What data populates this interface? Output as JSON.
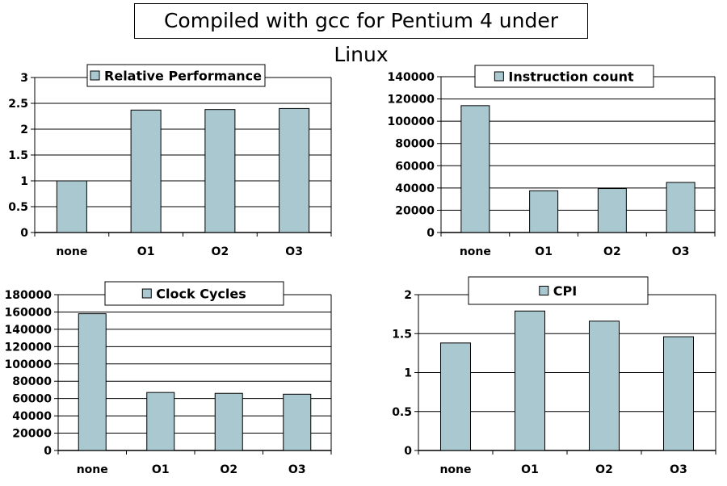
{
  "page": {
    "title": "Compiled with gcc for Pentium 4 under Linux"
  },
  "colors": {
    "bar_fill": "#a9c8cf",
    "bar_stroke": "#000000",
    "grid": "#000000"
  },
  "chart_data": [
    {
      "id": "relative-performance",
      "type": "bar",
      "legend": "Relative Performance",
      "legend_position": "top",
      "categories": [
        "none",
        "O1",
        "O2",
        "O3"
      ],
      "values": [
        1.0,
        2.37,
        2.38,
        2.4
      ],
      "ylim": [
        0,
        3
      ],
      "yticks": [
        "0",
        "0.5",
        "1",
        "1.5",
        "2",
        "2.5",
        "3"
      ],
      "grid": true
    },
    {
      "id": "instruction-count",
      "type": "bar",
      "legend": "Instruction count",
      "legend_position": "top",
      "categories": [
        "none",
        "O1",
        "O2",
        "O3"
      ],
      "values": [
        114000,
        37500,
        39500,
        45000
      ],
      "ylim": [
        0,
        140000
      ],
      "yticks": [
        "0",
        "20000",
        "40000",
        "60000",
        "80000",
        "100000",
        "120000",
        "140000"
      ],
      "grid": true
    },
    {
      "id": "clock-cycles",
      "type": "bar",
      "legend": "Clock Cycles",
      "legend_position": "top",
      "categories": [
        "none",
        "O1",
        "O2",
        "O3"
      ],
      "values": [
        158000,
        67000,
        66000,
        65000
      ],
      "ylim": [
        0,
        180000
      ],
      "yticks": [
        "0",
        "20000",
        "40000",
        "60000",
        "80000",
        "100000",
        "120000",
        "140000",
        "160000",
        "180000"
      ],
      "grid": true
    },
    {
      "id": "cpi",
      "type": "bar",
      "legend": "CPI",
      "legend_position": "top",
      "categories": [
        "none",
        "O1",
        "O2",
        "O3"
      ],
      "values": [
        1.38,
        1.79,
        1.66,
        1.46
      ],
      "ylim": [
        0,
        2
      ],
      "yticks": [
        "0",
        "0.5",
        "1",
        "1.5",
        "2"
      ],
      "grid": true
    }
  ]
}
